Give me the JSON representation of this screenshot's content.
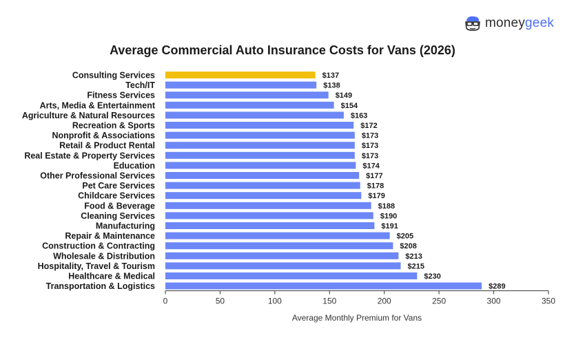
{
  "brand": {
    "name_part1": "money",
    "name_part2": "geek",
    "logo_icon": "moneygeek-mascot-icon",
    "colors": {
      "dark": "#2b2b2b",
      "accent": "#4f6ff5"
    }
  },
  "chart_data": {
    "type": "bar",
    "orientation": "horizontal",
    "title": "Average Commercial Auto Insurance Costs for Vans (2026)",
    "xlabel": "Average Monthly Premium for Vans",
    "ylabel": "",
    "xlim": [
      0,
      350
    ],
    "xticks": [
      0,
      50,
      100,
      150,
      200,
      250,
      300,
      350
    ],
    "grid": false,
    "value_prefix": "$",
    "categories": [
      "Consulting Services",
      "Tech/IT",
      "Fitness Services",
      "Arts, Media & Entertainment",
      "Agriculture & Natural Resources",
      "Recreation & Sports",
      "Nonprofit & Associations",
      "Retail & Product Rental",
      "Real Estate & Property Services",
      "Education",
      "Other Professional Services",
      "Pet Care Services",
      "Childcare Services",
      "Food & Beverage",
      "Cleaning Services",
      "Manufacturing",
      "Repair & Maintenance",
      "Construction & Contracting",
      "Wholesale & Distribution",
      "Hospitality, Travel & Tourism",
      "Healthcare & Medical",
      "Transportation & Logistics"
    ],
    "values": [
      137,
      138,
      149,
      154,
      163,
      172,
      173,
      173,
      173,
      174,
      177,
      178,
      179,
      188,
      190,
      191,
      205,
      208,
      213,
      215,
      230,
      289
    ],
    "highlight_index": 0,
    "colors": {
      "bar": "#6d87f7",
      "highlight": "#f2c00c",
      "axis": "#333333",
      "text": "#1a1a1a"
    }
  }
}
